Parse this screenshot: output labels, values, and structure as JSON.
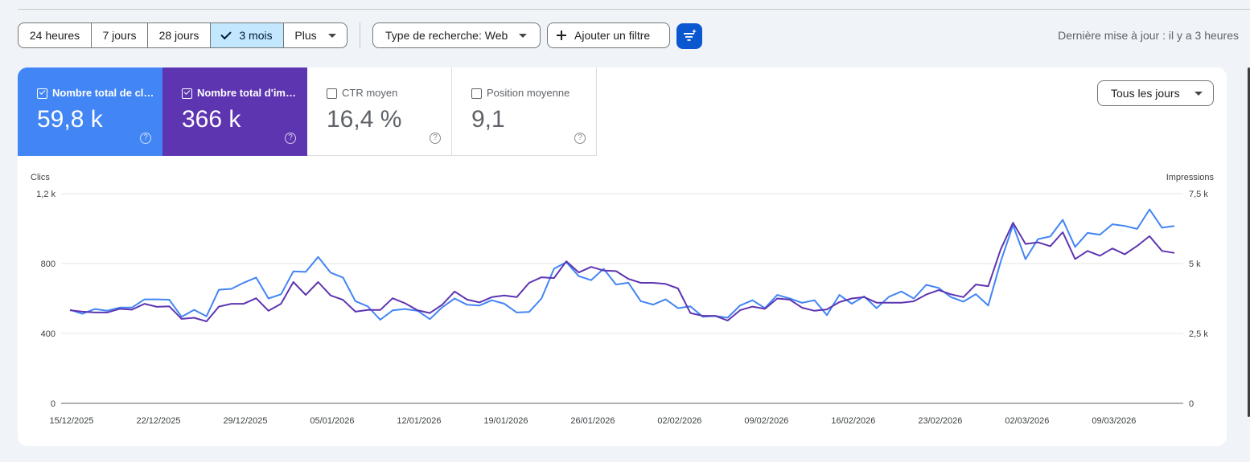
{
  "toolbar": {
    "ranges": [
      {
        "label": "24 heures",
        "active": false
      },
      {
        "label": "7 jours",
        "active": false
      },
      {
        "label": "28 jours",
        "active": false
      },
      {
        "label": "3 mois",
        "active": true
      },
      {
        "label": "Plus",
        "active": false
      }
    ],
    "search_type": "Type de recherche: Web",
    "add_filter": "Ajouter un filtre",
    "last_update": "Dernière mise à jour : il y a 3 heures"
  },
  "metrics": [
    {
      "label": "Nombre total de clics",
      "value": "59,8 k",
      "checked": true,
      "color": "#4285f4"
    },
    {
      "label": "Nombre total d'impressions",
      "value": "366 k",
      "checked": true,
      "color": "#5e35b1"
    },
    {
      "label": "CTR moyen",
      "value": "16,4 %",
      "checked": false
    },
    {
      "label": "Position moyenne",
      "value": "9,1",
      "checked": false
    }
  ],
  "days_select": "Tous les jours",
  "icons": {
    "check": "check-icon",
    "dropdown": "chevron-down-icon",
    "add": "plus-icon",
    "filter": "filter-sparkle-icon",
    "help": "help-icon"
  },
  "chart_data": {
    "type": "line",
    "y_left": {
      "label": "Clics",
      "ticks": [
        "0",
        "400",
        "800",
        "1,2 k"
      ],
      "range": [
        0,
        1200
      ]
    },
    "y_right": {
      "label": "Impressions",
      "ticks": [
        "0",
        "2,5 k",
        "5 k",
        "7,5 k"
      ],
      "range": [
        0,
        7500
      ]
    },
    "x_ticks": [
      "15/12/2025",
      "22/12/2025",
      "29/12/2025",
      "05/01/2026",
      "12/01/2026",
      "19/01/2026",
      "26/01/2026",
      "02/02/2026",
      "09/02/2026",
      "16/02/2026",
      "23/02/2026",
      "02/03/2026",
      "09/03/2026"
    ],
    "grid": true,
    "series": [
      {
        "name": "Clics",
        "axis": "left",
        "color": "#4285f4",
        "values": [
          535,
          512,
          540,
          530,
          548,
          548,
          595,
          595,
          593,
          495,
          535,
          498,
          650,
          655,
          690,
          720,
          600,
          624,
          755,
          752,
          838,
          748,
          720,
          585,
          555,
          478,
          532,
          540,
          530,
          482,
          550,
          600,
          564,
          560,
          590,
          570,
          520,
          523,
          600,
          770,
          808,
          728,
          705,
          770,
          680,
          690,
          585,
          565,
          595,
          545,
          555,
          495,
          500,
          490,
          560,
          590,
          545,
          620,
          600,
          575,
          590,
          505,
          620,
          570,
          612,
          545,
          610,
          640,
          600,
          678,
          660,
          608,
          582,
          625,
          560,
          810,
          1020,
          825,
          940,
          955,
          1050,
          895,
          975,
          965,
          1025,
          1015,
          998,
          1110,
          1005,
          1015
        ]
      },
      {
        "name": "Impressions",
        "axis": "right",
        "color": "#5e35b1",
        "values": [
          3330,
          3280,
          3250,
          3250,
          3380,
          3350,
          3560,
          3450,
          3470,
          3020,
          3060,
          2930,
          3460,
          3560,
          3560,
          3760,
          3310,
          3560,
          4340,
          3880,
          4340,
          3860,
          3700,
          3280,
          3340,
          3340,
          3760,
          3580,
          3330,
          3230,
          3530,
          4000,
          3710,
          3610,
          3800,
          3860,
          3800,
          4310,
          4510,
          4480,
          5080,
          4680,
          4880,
          4750,
          4730,
          4450,
          4310,
          4310,
          4270,
          4110,
          3230,
          3130,
          3130,
          2960,
          3330,
          3460,
          3380,
          3750,
          3710,
          3420,
          3310,
          3360,
          3620,
          3750,
          3800,
          3600,
          3600,
          3600,
          3650,
          3890,
          4050,
          3900,
          3800,
          4250,
          4190,
          5500,
          6460,
          5700,
          5760,
          5620,
          6120,
          5160,
          5450,
          5280,
          5540,
          5330,
          5630,
          5980,
          5450,
          5380
        ]
      }
    ]
  }
}
